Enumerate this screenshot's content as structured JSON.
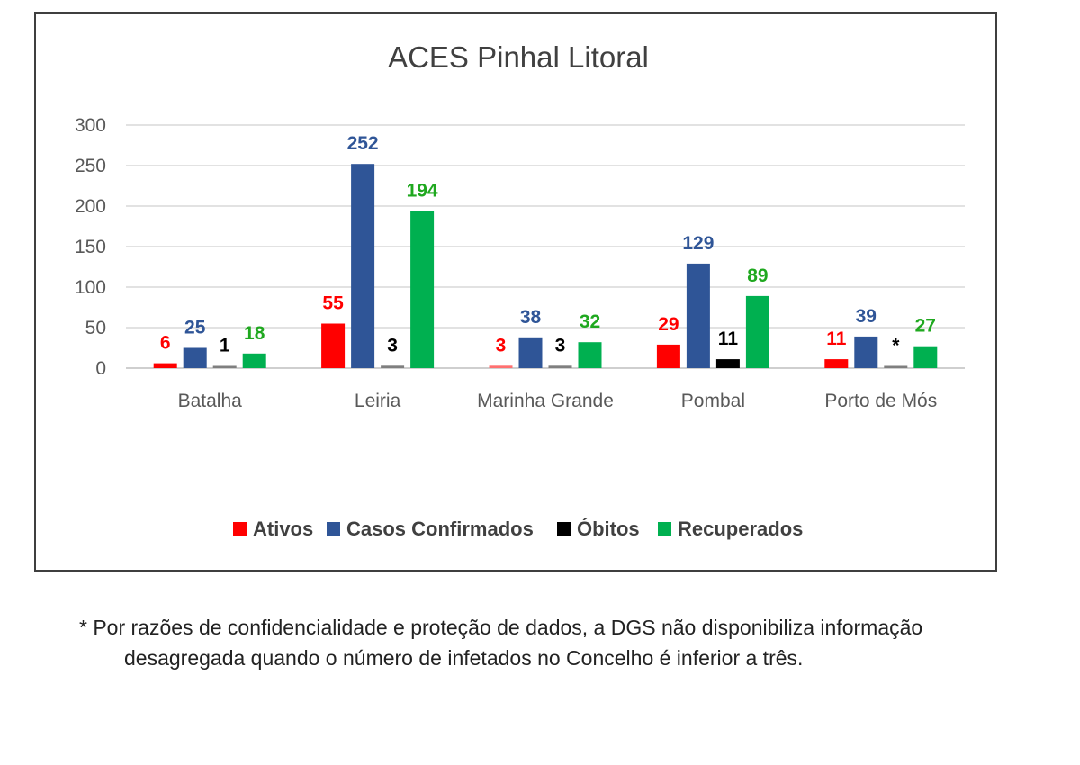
{
  "chart_data": {
    "type": "bar",
    "title": "ACES Pinhal Litoral",
    "xlabel": "",
    "ylabel": "",
    "ylim": [
      0,
      300
    ],
    "yticks": [
      0,
      50,
      100,
      150,
      200,
      250,
      300
    ],
    "grid": true,
    "legend_position": "bottom",
    "categories": [
      "Batalha",
      "Leiria",
      "Marinha Grande",
      "Pombal",
      "Porto de Mós"
    ],
    "series": [
      {
        "name": "Ativos",
        "color": "#ff0000",
        "label_color": "#ff0000",
        "values": [
          6,
          55,
          3,
          29,
          11
        ],
        "labels": [
          "6",
          "55",
          "3",
          "29",
          "11"
        ]
      },
      {
        "name": "Casos Confirmados",
        "color": "#2f5597",
        "label_color": "#2f5597",
        "values": [
          25,
          252,
          38,
          129,
          39
        ],
        "labels": [
          "25",
          "252",
          "38",
          "129",
          "39"
        ]
      },
      {
        "name": "Óbitos",
        "color": "#000000",
        "label_color": "#000000",
        "values": [
          1,
          3,
          3,
          11,
          null
        ],
        "labels": [
          "1",
          "3",
          "3",
          "11",
          "*"
        ]
      },
      {
        "name": "Recuperados",
        "color": "#00b050",
        "label_color": "#1fa81f",
        "values": [
          18,
          194,
          32,
          89,
          27
        ],
        "labels": [
          "18",
          "194",
          "32",
          "89",
          "27"
        ]
      }
    ]
  },
  "footnote": {
    "line1": "* Por razões de confidencialidade e proteção de dados, a DGS não disponibiliza informação",
    "line2": "desagregada quando o número de infetados no Concelho é inferior a três."
  }
}
